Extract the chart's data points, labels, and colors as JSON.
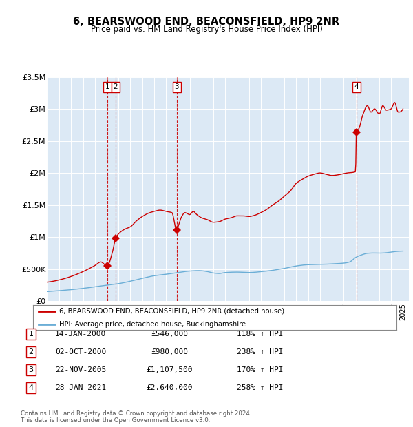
{
  "title": "6, BEARSWOOD END, BEACONSFIELD, HP9 2NR",
  "subtitle": "Price paid vs. HM Land Registry's House Price Index (HPI)",
  "plot_bg_color": "#dce9f5",
  "line_color_red": "#cc0000",
  "line_color_blue": "#6baed6",
  "ylim": [
    0,
    3500000
  ],
  "yticks": [
    0,
    500000,
    1000000,
    1500000,
    2000000,
    2500000,
    3000000,
    3500000
  ],
  "ytick_labels": [
    "£0",
    "£500K",
    "£1M",
    "£1.5M",
    "£2M",
    "£2.5M",
    "£3M",
    "£3.5M"
  ],
  "xmin": 1995,
  "xmax": 2025.5,
  "sale_dates": [
    2000.04,
    2000.75,
    2005.9,
    2021.07
  ],
  "sale_prices": [
    546000,
    980000,
    1107500,
    2640000
  ],
  "sale_labels": [
    "1",
    "2",
    "3",
    "4"
  ],
  "table_entries": [
    {
      "num": "1",
      "date": "14-JAN-2000",
      "price": "£546,000",
      "pct": "118% ↑ HPI"
    },
    {
      "num": "2",
      "date": "02-OCT-2000",
      "price": "£980,000",
      "pct": "238% ↑ HPI"
    },
    {
      "num": "3",
      "date": "22-NOV-2005",
      "price": "£1,107,500",
      "pct": "170% ↑ HPI"
    },
    {
      "num": "4",
      "date": "28-JAN-2021",
      "price": "£2,640,000",
      "pct": "258% ↑ HPI"
    }
  ],
  "legend_red_label": "6, BEARSWOOD END, BEACONSFIELD, HP9 2NR (detached house)",
  "legend_blue_label": "HPI: Average price, detached house, Buckinghamshire",
  "footer": "Contains HM Land Registry data © Crown copyright and database right 2024.\nThis data is licensed under the Open Government Licence v3.0."
}
